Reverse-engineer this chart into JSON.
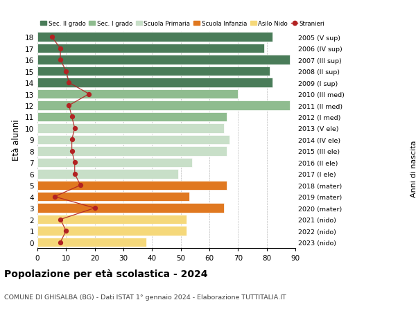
{
  "ages": [
    18,
    17,
    16,
    15,
    14,
    13,
    12,
    11,
    10,
    9,
    8,
    7,
    6,
    5,
    4,
    3,
    2,
    1,
    0
  ],
  "bar_values": [
    82,
    79,
    88,
    81,
    82,
    70,
    88,
    66,
    65,
    67,
    66,
    54,
    49,
    66,
    53,
    65,
    52,
    52,
    38
  ],
  "bar_colors": [
    "#4a7c59",
    "#4a7c59",
    "#4a7c59",
    "#4a7c59",
    "#4a7c59",
    "#8fbc8f",
    "#8fbc8f",
    "#8fbc8f",
    "#c8dfc8",
    "#c8dfc8",
    "#c8dfc8",
    "#c8dfc8",
    "#c8dfc8",
    "#e07820",
    "#e07820",
    "#e07820",
    "#f5d87a",
    "#f5d87a",
    "#f5d87a"
  ],
  "stranieri_values": [
    5,
    8,
    8,
    10,
    11,
    18,
    11,
    12,
    13,
    12,
    12,
    13,
    13,
    15,
    6,
    20,
    8,
    10,
    8
  ],
  "right_labels": [
    "2005 (V sup)",
    "2006 (IV sup)",
    "2007 (III sup)",
    "2008 (II sup)",
    "2009 (I sup)",
    "2010 (III med)",
    "2011 (II med)",
    "2012 (I med)",
    "2013 (V ele)",
    "2014 (IV ele)",
    "2015 (III ele)",
    "2016 (II ele)",
    "2017 (I ele)",
    "2018 (mater)",
    "2019 (mater)",
    "2020 (mater)",
    "2021 (nido)",
    "2022 (nido)",
    "2023 (nido)"
  ],
  "legend_labels": [
    "Sec. II grado",
    "Sec. I grado",
    "Scuola Primaria",
    "Scuola Infanzia",
    "Asilo Nido",
    "Stranieri"
  ],
  "legend_colors": [
    "#4a7c59",
    "#8fbc8f",
    "#c8dfc8",
    "#e07820",
    "#f5d87a",
    "#b22222"
  ],
  "ylabel": "Età alunni",
  "ylabel2": "Anni di nascita",
  "title": "Popolazione per età scolastica - 2024",
  "subtitle": "COMUNE DI GHISALBA (BG) - Dati ISTAT 1° gennaio 2024 - Elaborazione TUTTITALIA.IT",
  "xlim": [
    0,
    90
  ],
  "xticks": [
    0,
    10,
    20,
    30,
    40,
    50,
    60,
    70,
    80,
    90
  ],
  "bar_height": 0.82,
  "stranieri_color": "#b22222"
}
